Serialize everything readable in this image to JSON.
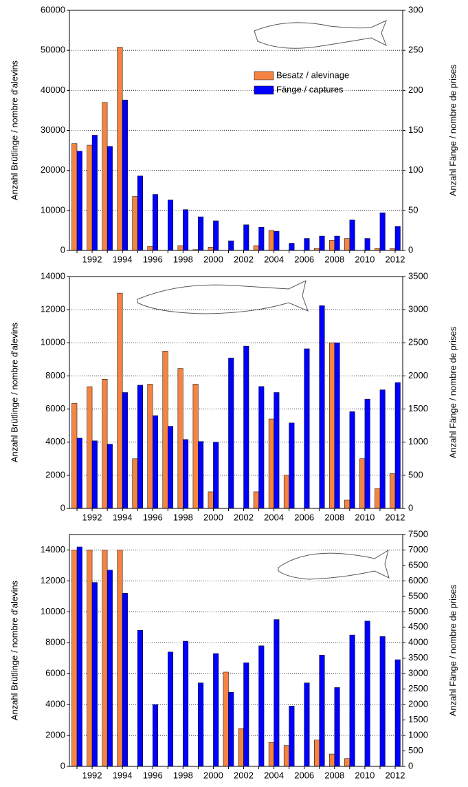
{
  "chart_data": [
    {
      "type": "bar",
      "categories": [
        null,
        "1992",
        null,
        "1994",
        null,
        "1996",
        null,
        "1998",
        null,
        "2000",
        null,
        "2002",
        null,
        "2004",
        null,
        "2006",
        null,
        "2008",
        null,
        "2010",
        null,
        "2012"
      ],
      "series": [
        {
          "name": "Besatz / alevinage",
          "color": "#f58442",
          "values": [
            26700,
            26300,
            37000,
            50800,
            13500,
            1000,
            0,
            1200,
            200,
            800,
            0,
            0,
            1200,
            5000,
            0,
            0,
            500,
            2500,
            3000,
            0,
            500,
            500
          ]
        },
        {
          "name": "Fänge / captures",
          "color": "#0000ff",
          "axis": "y2",
          "values": [
            124,
            144,
            130,
            188,
            93,
            70,
            63,
            51,
            42,
            37,
            12,
            32,
            29,
            24,
            9,
            15,
            18,
            18,
            38,
            15,
            47,
            30
          ]
        }
      ],
      "ylim": [
        0,
        60000
      ],
      "yticks": [
        0,
        10000,
        20000,
        30000,
        40000,
        50000,
        60000
      ],
      "y2lim": [
        0,
        300
      ],
      "y2ticks": [
        0,
        50,
        100,
        150,
        200,
        250,
        300
      ],
      "ylabel": "Anzahl Brütlinge / nombre d'alevins",
      "y2label": "Anzahl Fänge / nombre de prises",
      "grid": true,
      "legend": "upper right"
    },
    {
      "type": "bar",
      "categories": [
        null,
        "1992",
        null,
        "1994",
        null,
        "1996",
        null,
        "1998",
        null,
        "2000",
        null,
        "2002",
        null,
        "2004",
        null,
        "2006",
        null,
        "2008",
        null,
        "2010",
        null,
        "2012"
      ],
      "series": [
        {
          "color": "#f58442",
          "values": [
            6350,
            7350,
            7800,
            13000,
            3000,
            7500,
            9500,
            8450,
            7500,
            1000,
            0,
            0,
            1000,
            5400,
            2000,
            0,
            0,
            10000,
            500,
            3000,
            1200,
            2100
          ]
        },
        {
          "color": "#0000ff",
          "axis": "y2",
          "values": [
            1060,
            1020,
            970,
            1750,
            1860,
            1400,
            1240,
            1040,
            1010,
            1000,
            2270,
            2450,
            1840,
            1750,
            1290,
            2410,
            3060,
            2500,
            1460,
            1650,
            1790,
            1900
          ]
        }
      ],
      "ylim": [
        0,
        14000
      ],
      "yticks": [
        0,
        2000,
        4000,
        6000,
        8000,
        10000,
        12000,
        14000
      ],
      "y2lim": [
        0,
        3500
      ],
      "y2ticks": [
        0,
        500,
        1000,
        1500,
        2000,
        2500,
        3000,
        3500
      ],
      "ylabel": "Anzahl Brütlinge / nombre d'alevins",
      "y2label": "Anzahl Fänge / nombre de prises",
      "grid": true
    },
    {
      "type": "bar",
      "categories": [
        null,
        "1992",
        null,
        "1994",
        null,
        "1996",
        null,
        "1998",
        null,
        "2000",
        null,
        "2002",
        null,
        "2004",
        null,
        "2006",
        null,
        "2008",
        null,
        "2010",
        null,
        "2012"
      ],
      "series": [
        {
          "color": "#f58442",
          "values": [
            14000,
            14000,
            14000,
            14000,
            0,
            0,
            0,
            0,
            0,
            0,
            6100,
            2450,
            0,
            1550,
            1350,
            0,
            1700,
            800,
            500,
            0,
            0,
            0
          ]
        },
        {
          "color": "#0000ff",
          "axis": "y2",
          "values": [
            7100,
            5950,
            6350,
            5600,
            4400,
            2000,
            3700,
            4050,
            2700,
            3650,
            2400,
            3350,
            3900,
            4750,
            1950,
            2700,
            3600,
            2550,
            4250,
            4700,
            4200,
            3450
          ]
        }
      ],
      "ylim": [
        0,
        15000
      ],
      "yticks": [
        0,
        2000,
        4000,
        6000,
        8000,
        10000,
        12000,
        14000
      ],
      "y2lim": [
        0,
        7500
      ],
      "y2ticks": [
        0,
        500,
        1000,
        1500,
        2000,
        2500,
        3000,
        3500,
        4000,
        4500,
        5000,
        5500,
        6000,
        6500,
        7000,
        7500
      ],
      "ylabel": "Anzahl Brütlinge / nombre d'alevins",
      "y2label": "Anzahl Fänge / nombre de prises",
      "grid": true
    }
  ]
}
